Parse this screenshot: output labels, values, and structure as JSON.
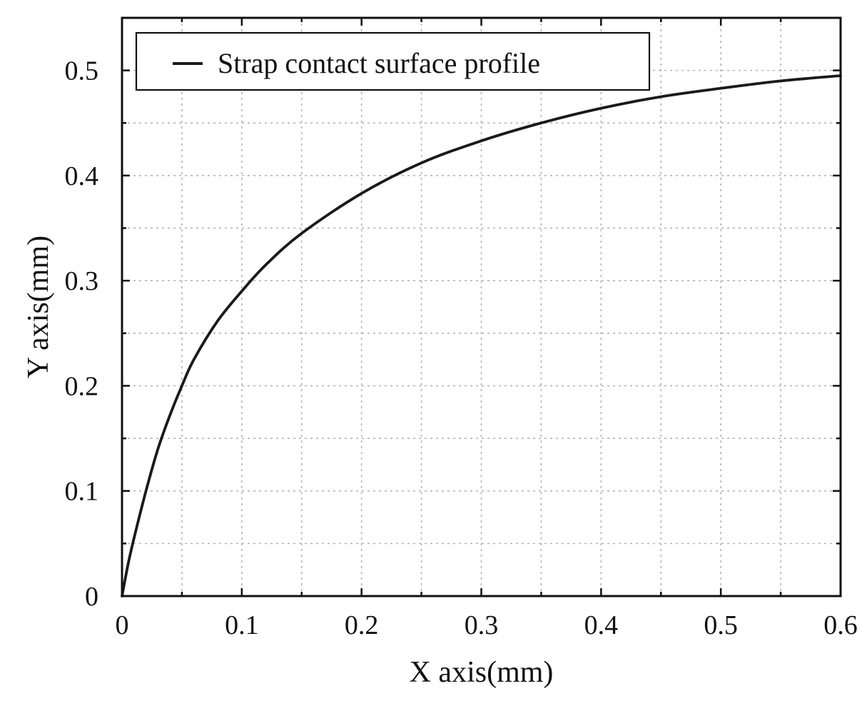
{
  "chart_data": {
    "type": "line",
    "title": "",
    "xlabel": "X axis(mm)",
    "ylabel": "Y axis(mm)",
    "xlim": [
      0,
      0.6
    ],
    "ylim": [
      0,
      0.55
    ],
    "x_ticks": [
      0,
      0.1,
      0.2,
      0.3,
      0.4,
      0.5,
      0.6
    ],
    "y_ticks": [
      0,
      0.1,
      0.2,
      0.3,
      0.4,
      0.5
    ],
    "x_tick_labels": [
      "0",
      "0.1",
      "0.2",
      "0.3",
      "0.4",
      "0.5",
      "0.6"
    ],
    "y_tick_labels": [
      "0",
      "0.1",
      "0.2",
      "0.3",
      "0.4",
      "0.5"
    ],
    "grid": true,
    "legend": {
      "position": "top-left",
      "entries": [
        "Strap contact surface profile"
      ]
    },
    "line_color": "#1a1a1a",
    "series": [
      {
        "name": "Strap contact surface profile",
        "x": [
          0,
          0.005,
          0.01,
          0.02,
          0.03,
          0.04,
          0.05,
          0.06,
          0.08,
          0.1,
          0.12,
          0.15,
          0.2,
          0.25,
          0.3,
          0.35,
          0.4,
          0.45,
          0.5,
          0.55,
          0.6
        ],
        "y": [
          0,
          0.03,
          0.055,
          0.1,
          0.14,
          0.172,
          0.2,
          0.225,
          0.262,
          0.29,
          0.315,
          0.345,
          0.383,
          0.412,
          0.433,
          0.45,
          0.464,
          0.475,
          0.483,
          0.49,
          0.495
        ]
      }
    ]
  }
}
